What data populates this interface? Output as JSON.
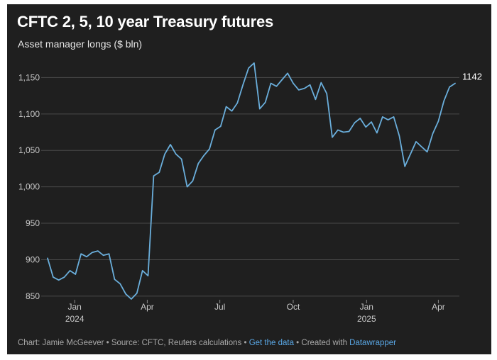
{
  "header": {
    "title": "CFTC 2, 5, 10 year Treasury futures",
    "subtitle": "Asset manager longs ($ bln)"
  },
  "footer": {
    "prefix": "Chart: Jamie McGeever • Source: CFTC, Reuters calculations • ",
    "get_data": "Get the data",
    "middle": " • Created with ",
    "datawrapper": "Datawrapper"
  },
  "colors": {
    "background": "#1f1f1f",
    "line": "#6aaedb",
    "grid": "#4a4a4a",
    "text": "#c8c8c8",
    "link": "#5aa8e6"
  },
  "chart_data": {
    "type": "line",
    "title": "CFTC 2, 5, 10 year Treasury futures",
    "subtitle": "Asset manager longs ($ bln)",
    "xlabel": "",
    "ylabel": "",
    "ylim": [
      845,
      1165
    ],
    "y_ticks": [
      850,
      900,
      950,
      1000,
      1050,
      1100,
      1150
    ],
    "y_tick_labels": [
      "850",
      "900",
      "950",
      "1,000",
      "1,050",
      "1,100",
      "1,150"
    ],
    "x_ticks": [
      {
        "label": "Jan",
        "sublabel": "2024",
        "date": "2024-01-01"
      },
      {
        "label": "Apr",
        "sublabel": "",
        "date": "2024-04-01"
      },
      {
        "label": "Jul",
        "sublabel": "",
        "date": "2024-07-01"
      },
      {
        "label": "Oct",
        "sublabel": "",
        "date": "2024-10-01"
      },
      {
        "label": "Jan",
        "sublabel": "2025",
        "date": "2025-01-01"
      },
      {
        "label": "Apr",
        "sublabel": "",
        "date": "2025-04-01"
      }
    ],
    "grid": true,
    "end_label": "1142",
    "series": [
      {
        "x": [
          "2023-11-28",
          "2023-12-05",
          "2023-12-12",
          "2023-12-19",
          "2023-12-26",
          "2024-01-02",
          "2024-01-09",
          "2024-01-16",
          "2024-01-23",
          "2024-01-30",
          "2024-02-06",
          "2024-02-13",
          "2024-02-20",
          "2024-02-27",
          "2024-03-05",
          "2024-03-12",
          "2024-03-19",
          "2024-03-26",
          "2024-04-02",
          "2024-04-09",
          "2024-04-16",
          "2024-04-23",
          "2024-04-30",
          "2024-05-07",
          "2024-05-14",
          "2024-05-21",
          "2024-05-28",
          "2024-06-04",
          "2024-06-11",
          "2024-06-18",
          "2024-06-25",
          "2024-07-02",
          "2024-07-09",
          "2024-07-16",
          "2024-07-23",
          "2024-07-30",
          "2024-08-06",
          "2024-08-13",
          "2024-08-20",
          "2024-08-27",
          "2024-09-03",
          "2024-09-10",
          "2024-09-17",
          "2024-09-24",
          "2024-10-01",
          "2024-10-08",
          "2024-10-15",
          "2024-10-22",
          "2024-10-29",
          "2024-11-05",
          "2024-11-12",
          "2024-11-19",
          "2024-11-26",
          "2024-12-03",
          "2024-12-10",
          "2024-12-17",
          "2024-12-24",
          "2024-12-31",
          "2025-01-07",
          "2025-01-14",
          "2025-01-21",
          "2025-01-28",
          "2025-02-04",
          "2025-02-11",
          "2025-02-18",
          "2025-02-25",
          "2025-03-04",
          "2025-03-11",
          "2025-03-18",
          "2025-03-25",
          "2025-04-01",
          "2025-04-08",
          "2025-04-15",
          "2025-04-22"
        ],
        "values": [
          902,
          876,
          872,
          876,
          885,
          880,
          908,
          904,
          910,
          912,
          906,
          908,
          873,
          867,
          853,
          846,
          854,
          885,
          878,
          1015,
          1020,
          1045,
          1058,
          1045,
          1038,
          1000,
          1008,
          1032,
          1043,
          1052,
          1078,
          1083,
          1110,
          1104,
          1115,
          1140,
          1163,
          1170,
          1107,
          1116,
          1142,
          1138,
          1147,
          1156,
          1142,
          1133,
          1135,
          1140,
          1120,
          1143,
          1128,
          1068,
          1078,
          1075,
          1076,
          1088,
          1094,
          1082,
          1089,
          1074,
          1096,
          1092,
          1096,
          1070,
          1028,
          1045,
          1062,
          1055,
          1048,
          1073,
          1090,
          1118,
          1137,
          1142
        ]
      }
    ]
  }
}
